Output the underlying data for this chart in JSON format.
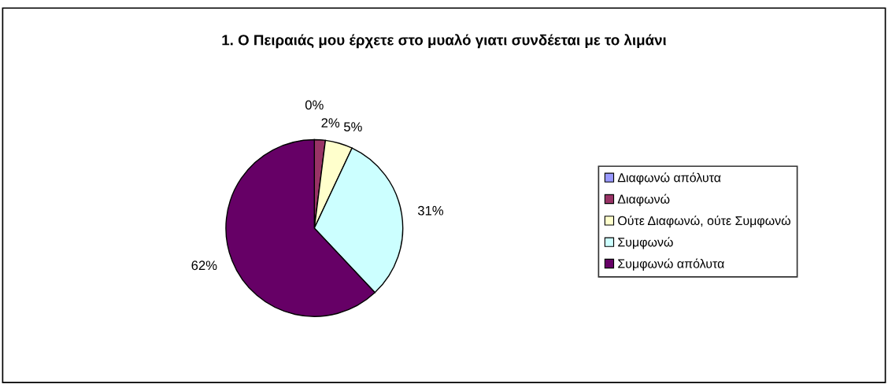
{
  "chart_data": {
    "type": "pie",
    "title": "1. Ο Πειραιάς μου έρχετε στο μυαλό γιατι συνδέεται με το λιμάνι",
    "categories": [
      "Διαφωνώ απόλυτα",
      "Διαφωνώ",
      "Ούτε Διαφωνώ, ούτε Συμφωνώ",
      "Συμφωνώ",
      "Συμφωνώ απόλυτα"
    ],
    "values": [
      0,
      2,
      5,
      31,
      62
    ],
    "colors": [
      "#9999ff",
      "#993366",
      "#ffffcc",
      "#ccffff",
      "#660066"
    ],
    "value_labels": [
      "0%",
      "2%",
      "5%",
      "31%",
      "62%"
    ],
    "legend": "right"
  }
}
